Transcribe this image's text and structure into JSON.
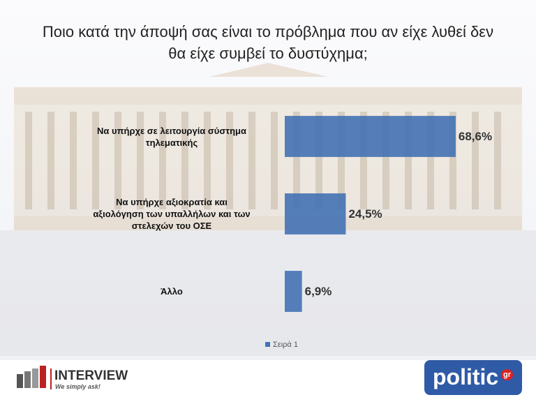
{
  "chart_data": {
    "type": "bar",
    "orientation": "horizontal",
    "title": "Ποιο κατά την άποψή σας είναι το πρόβλημα που αν είχε λυθεί δεν\nθα είχε συμβεί το δυστύχημα;",
    "categories": [
      "Να υπήρχε σε λειτουργία σύστημα\nτηλεματικής",
      "Να υπήρχε αξιοκρατία και\nαξιολόγηση των υπαλλήλων και των\nστελεχών του ΟΣΕ",
      "Άλλο"
    ],
    "series": [
      {
        "name": "Σειρά 1",
        "color": "#4472b4",
        "values": [
          68.6,
          24.5,
          6.9
        ],
        "value_labels": [
          "68,6%",
          "24,5%",
          "6,9%"
        ]
      }
    ],
    "xlim": [
      0,
      100
    ],
    "legend": "bottom"
  },
  "branding": {
    "left_name": "INTERVIEW",
    "left_tagline": "We simply ask!",
    "right_name": "politic",
    "right_suffix": "gr"
  }
}
